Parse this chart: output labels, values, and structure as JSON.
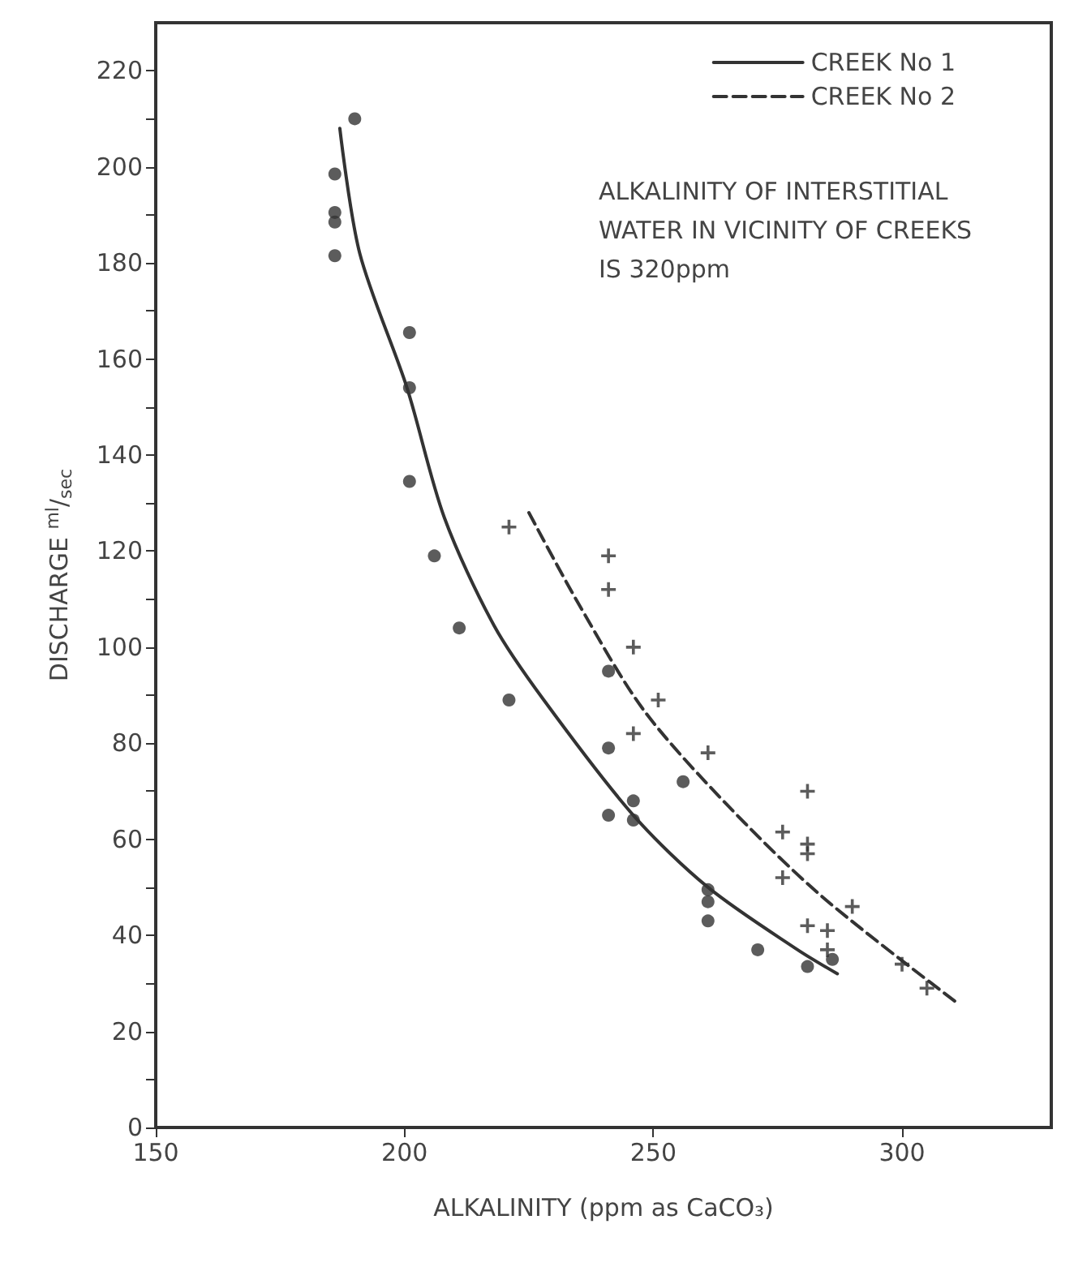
{
  "chart_data": {
    "type": "scatter",
    "xlabel": "ALKALINITY (ppm as CaCO₃)",
    "ylabel": "DISCHARGE $^{ml}$/$_{sec}$",
    "xlim": [
      150,
      330
    ],
    "xticks": [
      150,
      200,
      250,
      300
    ],
    "ylim": [
      0,
      230
    ],
    "yticks": [
      0,
      {
        "value": 10,
        "label": null
      },
      20,
      {
        "value": 30,
        "label": null
      },
      40,
      {
        "value": 50,
        "label": null
      },
      60,
      {
        "value": 70,
        "label": null
      },
      80,
      {
        "value": 90,
        "label": null
      },
      100,
      {
        "value": 110,
        "label": null
      },
      120,
      {
        "value": 130,
        "label": null
      },
      140,
      {
        "value": 150,
        "label": null
      },
      160,
      {
        "value": 170,
        "label": null
      },
      180,
      {
        "value": 190,
        "label": null
      },
      200,
      {
        "value": 210,
        "label": null
      },
      220
    ],
    "grid": false,
    "legend": "top right",
    "annotations": [
      "ALKALINITY OF INTERSTITIAL WATER IN VICINITY OF CREEKS IS 320ppm"
    ],
    "series": [
      {
        "marker": "circle",
        "color": "#333333",
        "x": [
          190,
          186,
          186,
          186,
          186,
          201,
          201,
          201,
          206,
          211,
          221,
          241,
          241,
          241,
          256,
          246,
          246,
          261,
          261,
          261,
          271,
          281,
          286
        ],
        "values": [
          210,
          198.5,
          190.5,
          188.5,
          181.5,
          165.5,
          154,
          134.5,
          119,
          104,
          89,
          95,
          79,
          65,
          72,
          68,
          64,
          49.5,
          47,
          43,
          37,
          33.5,
          35
        ]
      },
      {
        "marker": "cross",
        "color": "#333333",
        "x": [
          221,
          241,
          241,
          246,
          251,
          246,
          261,
          281,
          276,
          281,
          281,
          276,
          281,
          285,
          285,
          290,
          300,
          305
        ],
        "values": [
          125,
          119,
          112,
          100,
          89,
          82,
          78,
          70,
          61.5,
          59,
          57,
          52,
          42,
          41,
          37,
          46,
          34,
          29
        ]
      },
      {
        "type": "line",
        "name": "CREEK No 1",
        "color": "#333333",
        "line_style": "solid",
        "marker": "none",
        "x": [
          187,
          191,
          200.5,
          208,
          218,
          228,
          246,
          261,
          279,
          287
        ],
        "values": [
          208,
          182,
          154,
          127,
          104.5,
          89,
          65,
          50,
          37,
          32
        ]
      },
      {
        "type": "line",
        "name": "CREEK No 2",
        "color": "#333333",
        "line_style": "dashed",
        "marker": "none",
        "x": [
          225,
          235,
          248,
          265,
          284,
          311
        ],
        "values": [
          128,
          109,
          87,
          67,
          48,
          26
        ]
      }
    ]
  }
}
